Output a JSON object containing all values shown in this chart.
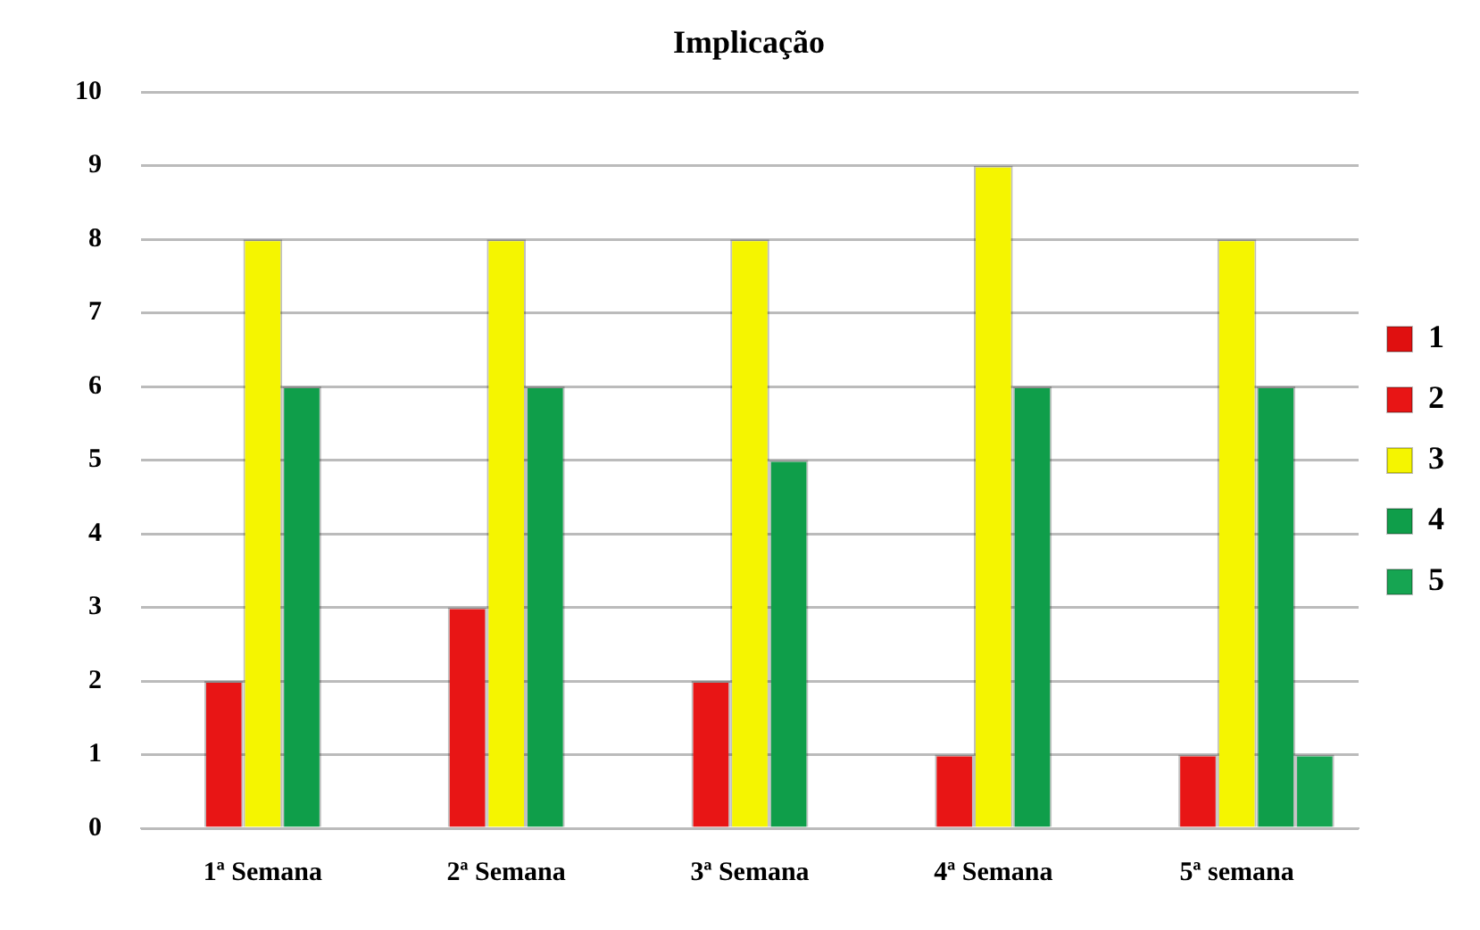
{
  "chart_data": {
    "type": "bar",
    "title": "Implicação",
    "categories": [
      "1ª Semana",
      "2ª Semana",
      "3ª Semana",
      "4ª Semana",
      "5ª semana"
    ],
    "series": [
      {
        "name": "1",
        "color": "#e01010",
        "values": [
          0,
          0,
          0,
          0,
          0
        ]
      },
      {
        "name": "2",
        "color": "#e81515",
        "values": [
          2,
          3,
          2,
          1,
          1
        ]
      },
      {
        "name": "3",
        "color": "#f5f500",
        "values": [
          8,
          8,
          8,
          9,
          8
        ]
      },
      {
        "name": "4",
        "color": "#0f9e4a",
        "values": [
          6,
          6,
          5,
          6,
          6
        ]
      },
      {
        "name": "5",
        "color": "#16a552",
        "values": [
          0,
          0,
          0,
          0,
          1
        ]
      }
    ],
    "ylim": [
      0,
      10
    ],
    "yticks": [
      0,
      1,
      2,
      3,
      4,
      5,
      6,
      7,
      8,
      9,
      10
    ],
    "grid": "y",
    "legend": "right"
  }
}
